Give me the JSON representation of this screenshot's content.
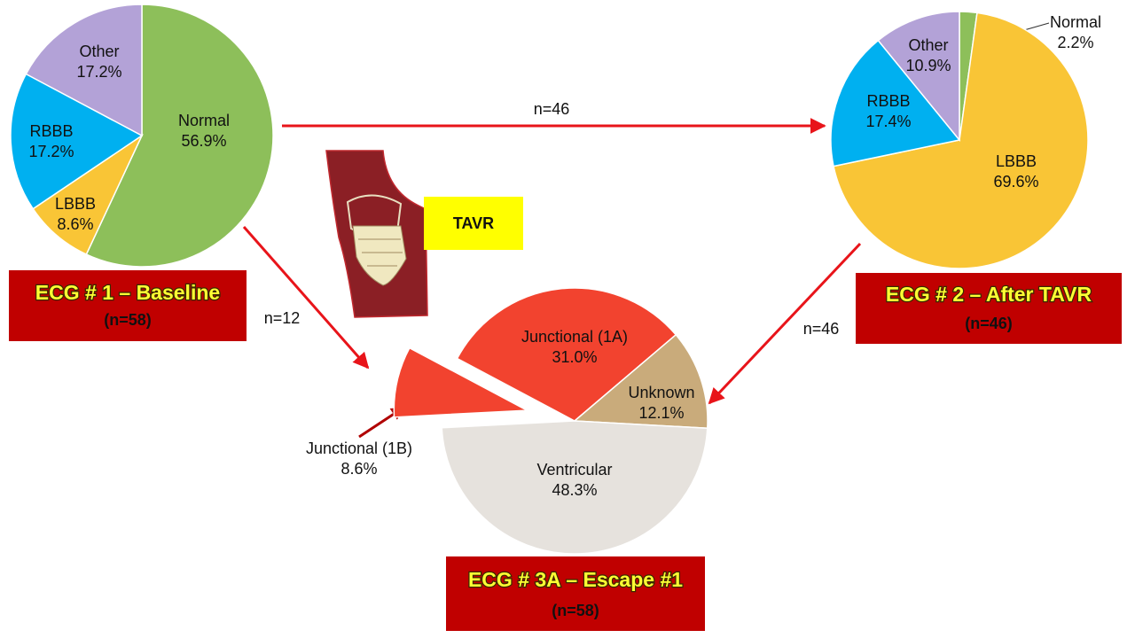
{
  "chart_data": [
    {
      "type": "pie",
      "title": "ECG # 1 –  Baseline",
      "subtitle": "(n=58)",
      "categories": [
        "Normal",
        "LBBB",
        "RBBB",
        "Other"
      ],
      "values": [
        56.9,
        8.6,
        17.2,
        17.2
      ],
      "value_labels": [
        "56.9%",
        "8.6%",
        "17.2%",
        "17.2%"
      ],
      "colors": [
        "#8dbf5a",
        "#f9c536",
        "#00b0f0",
        "#b3a2d7"
      ]
    },
    {
      "type": "pie",
      "title": "ECG # 2 – After TAVR",
      "subtitle": "(n=46)",
      "categories": [
        "Normal",
        "LBBB",
        "RBBB",
        "Other"
      ],
      "values": [
        2.2,
        69.6,
        17.4,
        10.9
      ],
      "value_labels": [
        "2.2%",
        "69.6%",
        "17.4%",
        "10.9%"
      ],
      "colors": [
        "#8dbf5a",
        "#f9c536",
        "#00b0f0",
        "#b3a2d7"
      ]
    },
    {
      "type": "pie",
      "title": "ECG # 3A – Escape #1",
      "subtitle": "(n=58)",
      "categories": [
        "Junctional (1A)",
        "Unknown",
        "Ventricular",
        "Junctional (1B)"
      ],
      "values": [
        31.0,
        12.1,
        48.3,
        8.6
      ],
      "value_labels": [
        "31.0%",
        "12.1%",
        "48.3%",
        "8.6%"
      ],
      "colors": [
        "#f2432f",
        "#c9ab7b",
        "#e6e2dd",
        "#f2432f"
      ]
    }
  ],
  "arrows": [
    {
      "label": "n=46"
    },
    {
      "label": "n=12"
    },
    {
      "label": "n=46"
    }
  ],
  "tavr_label": "TAVR"
}
